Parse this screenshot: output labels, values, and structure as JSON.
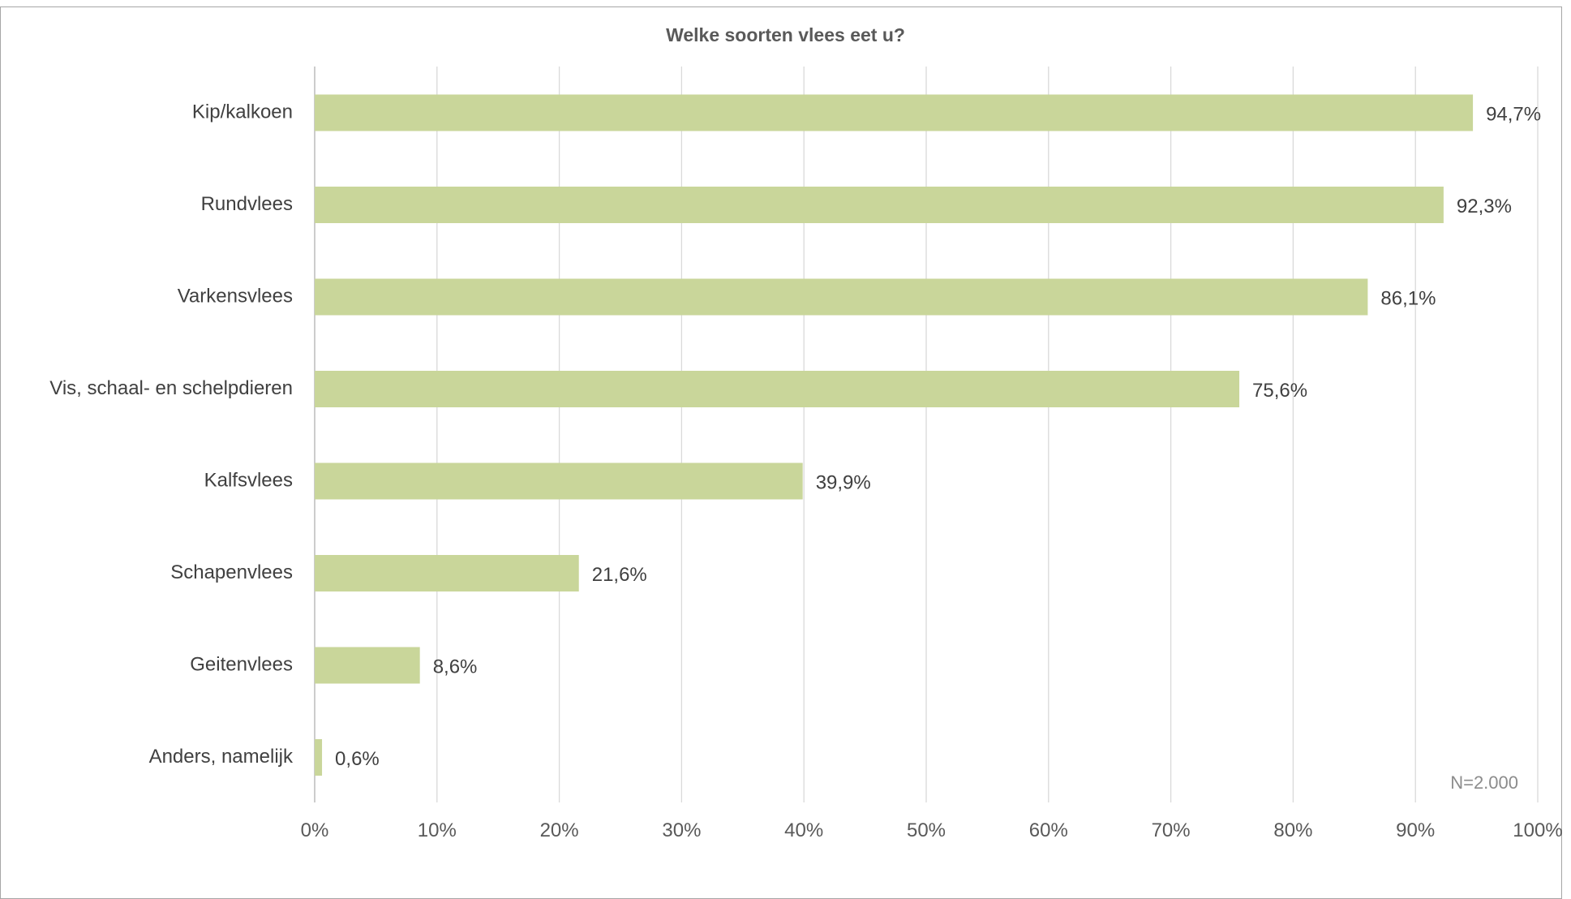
{
  "chart_data": {
    "type": "bar",
    "orientation": "horizontal",
    "title": "Welke soorten vlees eet u?",
    "categories": [
      "Kip/kalkoen",
      "Rundvlees",
      "Varkensvlees",
      "Vis, schaal- en schelpdieren",
      "Kalfsvlees",
      "Schapenvlees",
      "Geitenvlees",
      "Anders, namelijk"
    ],
    "values": [
      94.7,
      92.3,
      86.1,
      75.6,
      39.9,
      21.6,
      8.6,
      0.6
    ],
    "value_labels": [
      "94,7%",
      "92,3%",
      "86,1%",
      "75,6%",
      "39,9%",
      "21,6%",
      "8,6%",
      "0,6%"
    ],
    "x_ticks": [
      "0%",
      "10%",
      "20%",
      "30%",
      "40%",
      "50%",
      "60%",
      "70%",
      "80%",
      "90%",
      "100%"
    ],
    "xlim": [
      0,
      100
    ],
    "xlabel": "",
    "ylabel": "",
    "grid": true,
    "bar_color": "#c9d69a",
    "grid_color": "#d9d9d9",
    "note": "N=2.000"
  }
}
